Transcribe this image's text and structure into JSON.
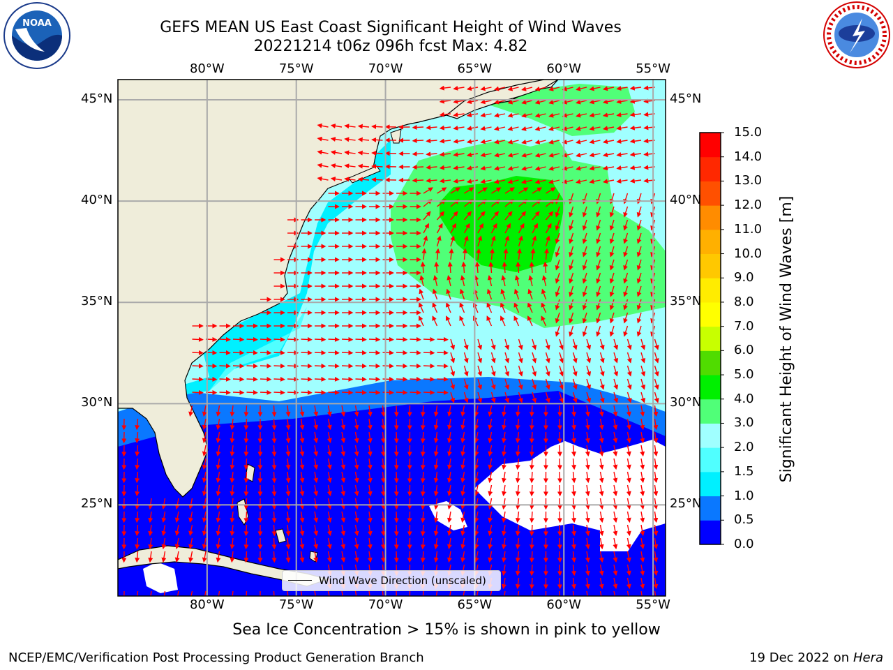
{
  "title": {
    "line1": "GEFS MEAN US East Coast Significant Height of Wind Waves",
    "line2": "20221214 t06z 096h fcst   Max: 4.82"
  },
  "map": {
    "lon_labels": [
      "80°W",
      "75°W",
      "70°W",
      "65°W",
      "60°W",
      "55°W"
    ],
    "lat_labels": [
      "45°N",
      "40°N",
      "35°N",
      "30°N",
      "25°N"
    ],
    "lon_values": [
      -80,
      -75,
      -70,
      -65,
      -60,
      -55
    ],
    "lat_values": [
      45,
      40,
      35,
      30,
      25
    ],
    "extent": {
      "lon_min": -85,
      "lon_max": -54.3,
      "lat_min": 20.5,
      "lat_max": 46
    },
    "legend_label": "Wind Wave Direction (unscaled)",
    "land_color": "#efedda",
    "arrow_color": "#ff0000",
    "grid": true
  },
  "colorbar": {
    "title": "Significant Height of Wind Waves [m]",
    "ticks": [
      "0.0",
      "0.5",
      "1.0",
      "1.5",
      "2.0",
      "3.0",
      "4.0",
      "5.0",
      "6.0",
      "7.0",
      "8.0",
      "9.0",
      "10.0",
      "11.0",
      "12.0",
      "13.0",
      "14.0",
      "15.0"
    ],
    "colors": [
      "#0000ff",
      "#0a78ff",
      "#00f0ff",
      "#50ffff",
      "#a0ffff",
      "#50ff78",
      "#00f000",
      "#50dc00",
      "#c8ff00",
      "#ffff00",
      "#ffec00",
      "#ffc800",
      "#ffb000",
      "#ff8c00",
      "#ff5000",
      "#ff2800",
      "#ff0000"
    ]
  },
  "note": "Sea Ice Concentration > 15% is shown in pink to yellow",
  "footer": {
    "left": "NCEP/EMC/Verification Post Processing Product Generation Branch",
    "date": "19 Dec 2022 on",
    "host": "Hera"
  },
  "logos": {
    "left_icon": "noaa-logo-icon",
    "right_icon": "nws-logo-icon"
  }
}
